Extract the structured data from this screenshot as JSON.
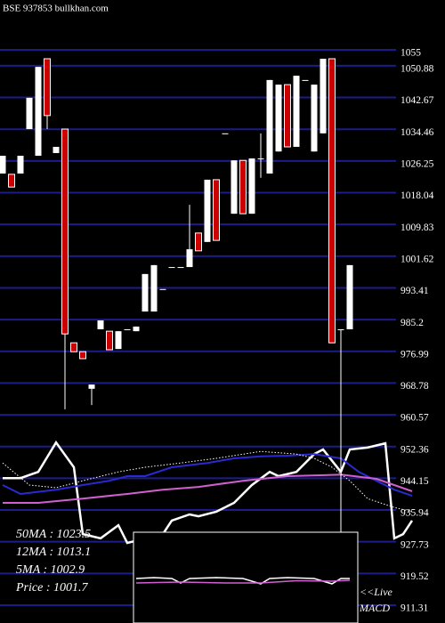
{
  "chart_data": {
    "type": "candlestick",
    "title": "BSE 937853 bullkhan.com",
    "ylim": [
      906.7,
      1067.9
    ],
    "xlim": [
      -0.3,
      49.7
    ],
    "yticks": [
      1055,
      1050.88,
      1042.67,
      1034.46,
      1026.25,
      1018.04,
      1009.83,
      1001.62,
      993.41,
      985.2,
      976.99,
      968.78,
      960.57,
      952.36,
      944.15,
      935.94,
      927.73,
      919.52,
      911.31
    ],
    "grid": true,
    "grid_color": "#1c1c8a",
    "up_color": "#ffffff",
    "down_color": "#cc0000",
    "open": [
      1023.0,
      1022.8,
      1023.0,
      1034.5,
      1027.6,
      1052.7,
      1028.3,
      1034.5,
      979.2,
      976.9,
      967.3,
      982.7,
      982.2,
      977.6,
      982.7,
      982.2,
      987.3,
      987.3,
      993.1,
      998.8,
      998.8,
      998.8,
      1007.6,
      1005.3,
      1021.4,
      1033.4,
      1012.6,
      1026.4,
      1012.6,
      1026.9,
      1023.0,
      1028.7,
      1046.0,
      1029.9,
      1047.2,
      1028.7,
      1033.4,
      1052.7,
      982.7,
      982.7
    ],
    "high": [
      1027.6,
      1022.8,
      1027.6,
      1042.6,
      1050.6,
      1052.7,
      1029.9,
      1034.5,
      979.2,
      976.9,
      968.4,
      985.0,
      982.2,
      982.2,
      982.7,
      983.4,
      997.0,
      999.3,
      993.1,
      998.8,
      998.8,
      1014.9,
      1007.6,
      1021.4,
      1021.4,
      1033.4,
      1026.4,
      1026.4,
      1026.9,
      1033.4,
      1047.2,
      1046.0,
      1046.0,
      1048.3,
      1047.2,
      1046.0,
      1052.7,
      1052.7,
      982.7,
      999.3
    ],
    "low": [
      1023.0,
      1019.5,
      1023.0,
      1034.5,
      1027.6,
      1034.5,
      1028.3,
      962.0,
      976.9,
      975.1,
      963.1,
      982.7,
      977.4,
      977.6,
      982.7,
      982.2,
      987.3,
      987.3,
      993.1,
      998.8,
      998.8,
      998.8,
      1003.0,
      1005.3,
      1005.7,
      1033.4,
      1012.6,
      1012.6,
      1012.6,
      1021.9,
      1023.0,
      1028.7,
      1029.9,
      1029.9,
      1047.2,
      1028.7,
      1033.4,
      979.2,
      930.0,
      982.7
    ],
    "close": [
      1027.6,
      1019.5,
      1027.6,
      1042.6,
      1050.6,
      1038.0,
      1029.9,
      981.5,
      976.9,
      975.1,
      968.4,
      985.0,
      977.4,
      982.2,
      982.7,
      983.4,
      997.0,
      999.3,
      993.1,
      998.8,
      998.8,
      1003.4,
      1003.0,
      1021.4,
      1005.7,
      1033.4,
      1026.4,
      1012.6,
      1026.9,
      1026.9,
      1047.2,
      1046.0,
      1029.9,
      1048.3,
      1047.2,
      1046.0,
      1052.7,
      979.2,
      982.7,
      999.3
    ],
    "lines": [
      {
        "color": "#ffffff",
        "dashed": false,
        "width": 2.5,
        "x": [
          0,
          2,
          4,
          6,
          8,
          9,
          11,
          13,
          14,
          18,
          19,
          21,
          22,
          24,
          26,
          28,
          30,
          31,
          33,
          35,
          36,
          38,
          39,
          41,
          43,
          44,
          45,
          46
        ],
        "values": [
          944.2,
          944.2,
          945.8,
          953.4,
          947.0,
          929.7,
          928.6,
          932.0,
          927.4,
          929.7,
          933.2,
          934.8,
          934.3,
          935.5,
          937.8,
          942.4,
          945.8,
          944.7,
          945.8,
          950.4,
          951.6,
          945.8,
          951.6,
          952.1,
          953.2,
          928.6,
          929.7,
          933.2
        ]
      },
      {
        "color": "#2a2ad0",
        "dashed": false,
        "width": 2,
        "x": [
          0,
          2,
          6,
          9,
          12,
          14,
          16,
          19,
          23,
          26,
          29,
          32,
          35,
          38,
          40,
          42,
          44,
          46
        ],
        "values": [
          942.4,
          940.1,
          941.2,
          942.4,
          943.5,
          944.7,
          944.7,
          947.0,
          948.1,
          949.3,
          949.8,
          950.0,
          950.4,
          949.3,
          945.8,
          943.5,
          941.2,
          939.6
        ]
      },
      {
        "color": "#d060d0",
        "dashed": false,
        "width": 2,
        "x": [
          0,
          4,
          9,
          14,
          18,
          22,
          27,
          32,
          38,
          42,
          44,
          46
        ],
        "values": [
          937.8,
          937.8,
          938.9,
          940.1,
          941.2,
          941.9,
          943.5,
          944.7,
          945.1,
          944.0,
          942.4,
          940.8
        ]
      },
      {
        "color": "#ffffff",
        "dashed": true,
        "width": 1,
        "x": [
          0,
          3,
          6,
          9,
          13,
          16,
          20,
          24,
          29,
          33,
          35,
          37,
          39,
          41,
          44,
          46
        ],
        "values": [
          948.1,
          942.4,
          941.7,
          943.5,
          945.8,
          947.0,
          948.1,
          949.3,
          951.1,
          950.4,
          949.3,
          947.0,
          943.5,
          938.9,
          936.6,
          935.5
        ]
      }
    ],
    "legend_texts": [
      "50MA : 1023.5",
      "12MA : 1013.1",
      "5MA : 1002.9",
      "Price   : 1001.7"
    ],
    "macd": {
      "label": [
        "<<Live",
        "MACD"
      ],
      "ylim": [
        -1,
        1
      ],
      "lines": [
        {
          "color": "#ffffff",
          "x": [
            15,
            17,
            19,
            20,
            21,
            24,
            27,
            29,
            30,
            32,
            35,
            37,
            38,
            39
          ],
          "values": [
            0.0,
            0.02,
            0.0,
            -0.1,
            0.0,
            0.02,
            0.0,
            -0.12,
            0.0,
            0.02,
            0.0,
            -0.12,
            0.0,
            0.0
          ]
        },
        {
          "color": "#d060d0",
          "x": [
            15,
            20,
            25,
            29,
            33,
            37,
            39
          ],
          "values": [
            -0.1,
            -0.08,
            -0.1,
            -0.1,
            -0.05,
            -0.06,
            -0.04
          ]
        }
      ]
    }
  }
}
